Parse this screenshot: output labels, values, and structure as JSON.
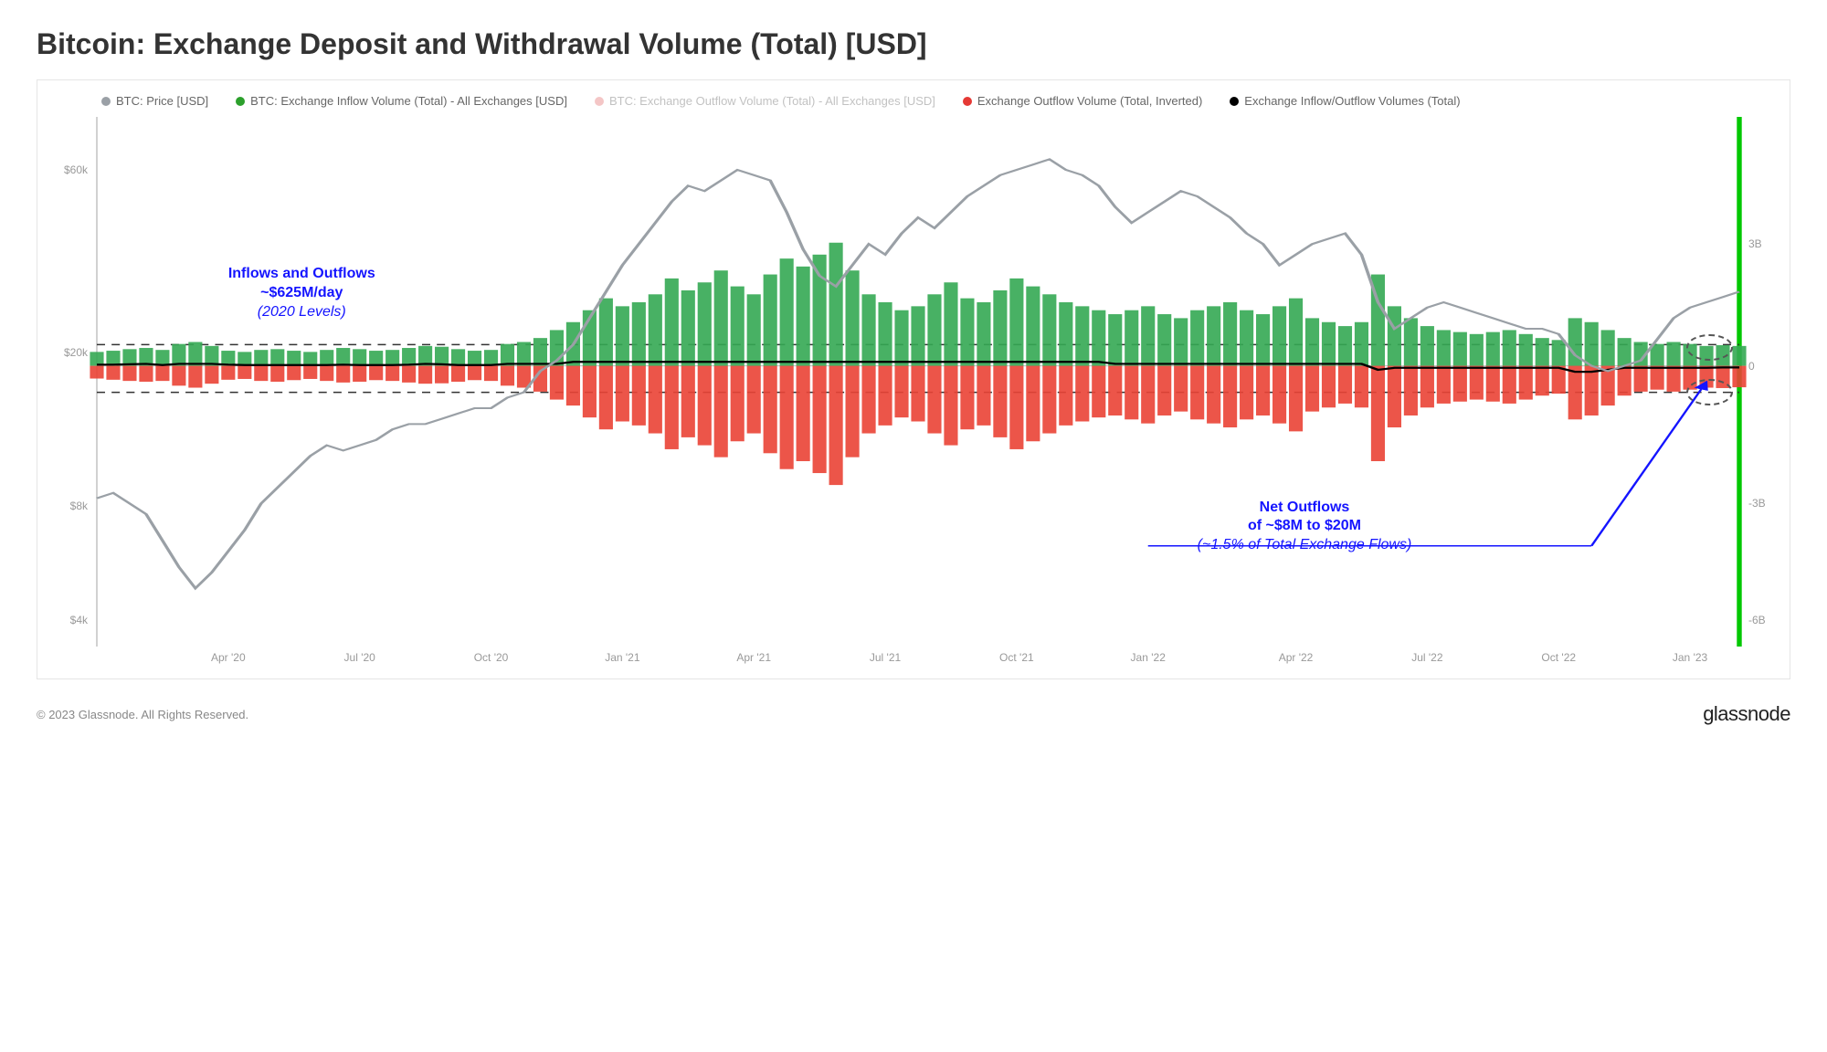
{
  "title": "Bitcoin: Exchange Deposit and Withdrawal Volume (Total) [USD]",
  "copyright": "© 2023 Glassnode. All Rights Reserved.",
  "brand": "glassnode",
  "chart": {
    "type": "mixed-bar-line",
    "background_color": "#ffffff",
    "border_color": "#e5e5e5",
    "legend": [
      {
        "label": "BTC: Price [USD]",
        "color": "#9aa0a6"
      },
      {
        "label": "BTC: Exchange Inflow Volume (Total) - All Exchanges [USD]",
        "color": "#2ca02c"
      },
      {
        "label": "BTC: Exchange Outflow Volume (Total) - All Exchanges [USD]",
        "color": "#e57373",
        "faded": true
      },
      {
        "label": "Exchange Outflow Volume (Total, Inverted)",
        "color": "#e53935"
      },
      {
        "label": "Exchange Inflow/Outflow Volumes (Total)",
        "color": "#000000"
      }
    ],
    "colors": {
      "price_line": "#9aa0a6",
      "inflow_bar": "#34a853",
      "outflow_bar": "#ea4335",
      "net_line": "#000000",
      "annotation": "#1414ff",
      "dashed_ref": "#333333",
      "zero_line": "#bbbbbb",
      "right_edge": "#00c800"
    },
    "left_axis": {
      "scale": "log",
      "ticks": [
        {
          "value": 60000,
          "label": "$60k",
          "pos_pct": 10
        },
        {
          "value": 20000,
          "label": "$20k",
          "pos_pct": 44.5
        },
        {
          "value": 8000,
          "label": "$8k",
          "pos_pct": 73.5
        },
        {
          "value": 4000,
          "label": "$4k",
          "pos_pct": 95
        }
      ]
    },
    "right_axis": {
      "scale": "linear",
      "zero_pos_pct": 47,
      "ticks": [
        {
          "value": 3000000000,
          "label": "3B",
          "pos_pct": 24
        },
        {
          "value": 0,
          "label": "0",
          "pos_pct": 47
        },
        {
          "value": -3000000000,
          "label": "-3B",
          "pos_pct": 73
        },
        {
          "value": -6000000000,
          "label": "-6B",
          "pos_pct": 95
        }
      ]
    },
    "x_axis": {
      "ticks": [
        {
          "label": "Apr '20",
          "pos_pct": 8
        },
        {
          "label": "Jul '20",
          "pos_pct": 16
        },
        {
          "label": "Oct '20",
          "pos_pct": 24
        },
        {
          "label": "Jan '21",
          "pos_pct": 32
        },
        {
          "label": "Apr '21",
          "pos_pct": 40
        },
        {
          "label": "Jul '21",
          "pos_pct": 48
        },
        {
          "label": "Oct '21",
          "pos_pct": 56
        },
        {
          "label": "Jan '22",
          "pos_pct": 64
        },
        {
          "label": "Apr '22",
          "pos_pct": 73
        },
        {
          "label": "Jul '22",
          "pos_pct": 81
        },
        {
          "label": "Oct '22",
          "pos_pct": 89
        },
        {
          "label": "Jan '23",
          "pos_pct": 97
        }
      ]
    },
    "dashed_ref_lines_pct": [
      43,
      52
    ],
    "price_series_pct": [
      [
        0,
        72
      ],
      [
        1,
        71
      ],
      [
        2,
        73
      ],
      [
        3,
        75
      ],
      [
        4,
        80
      ],
      [
        5,
        85
      ],
      [
        6,
        89
      ],
      [
        7,
        86
      ],
      [
        8,
        82
      ],
      [
        9,
        78
      ],
      [
        10,
        73
      ],
      [
        11,
        70
      ],
      [
        12,
        67
      ],
      [
        13,
        64
      ],
      [
        14,
        62
      ],
      [
        15,
        63
      ],
      [
        16,
        62
      ],
      [
        17,
        61
      ],
      [
        18,
        59
      ],
      [
        19,
        58
      ],
      [
        20,
        58
      ],
      [
        21,
        57
      ],
      [
        22,
        56
      ],
      [
        23,
        55
      ],
      [
        24,
        55
      ],
      [
        25,
        53
      ],
      [
        26,
        52
      ],
      [
        27,
        48
      ],
      [
        28,
        46
      ],
      [
        29,
        43
      ],
      [
        30,
        38
      ],
      [
        31,
        33
      ],
      [
        32,
        28
      ],
      [
        33,
        24
      ],
      [
        34,
        20
      ],
      [
        35,
        16
      ],
      [
        36,
        13
      ],
      [
        37,
        14
      ],
      [
        38,
        12
      ],
      [
        39,
        10
      ],
      [
        40,
        11
      ],
      [
        41,
        12
      ],
      [
        42,
        18
      ],
      [
        43,
        25
      ],
      [
        44,
        30
      ],
      [
        45,
        32
      ],
      [
        46,
        28
      ],
      [
        47,
        24
      ],
      [
        48,
        26
      ],
      [
        49,
        22
      ],
      [
        50,
        19
      ],
      [
        51,
        21
      ],
      [
        52,
        18
      ],
      [
        53,
        15
      ],
      [
        54,
        13
      ],
      [
        55,
        11
      ],
      [
        56,
        10
      ],
      [
        57,
        9
      ],
      [
        58,
        8
      ],
      [
        59,
        10
      ],
      [
        60,
        11
      ],
      [
        61,
        13
      ],
      [
        62,
        17
      ],
      [
        63,
        20
      ],
      [
        64,
        18
      ],
      [
        65,
        16
      ],
      [
        66,
        14
      ],
      [
        67,
        15
      ],
      [
        68,
        17
      ],
      [
        69,
        19
      ],
      [
        70,
        22
      ],
      [
        71,
        24
      ],
      [
        72,
        28
      ],
      [
        73,
        26
      ],
      [
        74,
        24
      ],
      [
        75,
        23
      ],
      [
        76,
        22
      ],
      [
        77,
        26
      ],
      [
        78,
        35
      ],
      [
        79,
        40
      ],
      [
        80,
        38
      ],
      [
        81,
        36
      ],
      [
        82,
        35
      ],
      [
        83,
        36
      ],
      [
        84,
        37
      ],
      [
        85,
        38
      ],
      [
        86,
        39
      ],
      [
        87,
        40
      ],
      [
        88,
        40
      ],
      [
        89,
        41
      ],
      [
        90,
        45
      ],
      [
        91,
        47
      ],
      [
        92,
        48
      ],
      [
        93,
        47
      ],
      [
        94,
        46
      ],
      [
        95,
        42
      ],
      [
        96,
        38
      ],
      [
        97,
        36
      ],
      [
        98,
        35
      ],
      [
        99,
        34
      ],
      [
        100,
        33
      ]
    ],
    "inflow_series": [
      0.35,
      0.38,
      0.42,
      0.45,
      0.4,
      0.55,
      0.6,
      0.5,
      0.38,
      0.35,
      0.4,
      0.42,
      0.38,
      0.35,
      0.4,
      0.45,
      0.42,
      0.38,
      0.4,
      0.45,
      0.5,
      0.48,
      0.42,
      0.38,
      0.4,
      0.55,
      0.6,
      0.7,
      0.9,
      1.1,
      1.4,
      1.7,
      1.5,
      1.6,
      1.8,
      2.2,
      1.9,
      2.1,
      2.4,
      2.0,
      1.8,
      2.3,
      2.7,
      2.5,
      2.8,
      3.1,
      2.4,
      1.8,
      1.6,
      1.4,
      1.5,
      1.8,
      2.1,
      1.7,
      1.6,
      1.9,
      2.2,
      2.0,
      1.8,
      1.6,
      1.5,
      1.4,
      1.3,
      1.4,
      1.5,
      1.3,
      1.2,
      1.4,
      1.5,
      1.6,
      1.4,
      1.3,
      1.5,
      1.7,
      1.2,
      1.1,
      1.0,
      1.1,
      2.3,
      1.5,
      1.2,
      1.0,
      0.9,
      0.85,
      0.8,
      0.85,
      0.9,
      0.8,
      0.7,
      0.65,
      1.2,
      1.1,
      0.9,
      0.7,
      0.6,
      0.55,
      0.6,
      0.55,
      0.5,
      0.52,
      0.5
    ],
    "outflow_series": [
      0.32,
      0.35,
      0.38,
      0.4,
      0.38,
      0.5,
      0.55,
      0.45,
      0.35,
      0.33,
      0.38,
      0.4,
      0.36,
      0.33,
      0.38,
      0.42,
      0.4,
      0.36,
      0.38,
      0.42,
      0.45,
      0.44,
      0.4,
      0.36,
      0.38,
      0.5,
      0.55,
      0.65,
      0.85,
      1.0,
      1.3,
      1.6,
      1.4,
      1.5,
      1.7,
      2.1,
      1.8,
      2.0,
      2.3,
      1.9,
      1.7,
      2.2,
      2.6,
      2.4,
      2.7,
      3.0,
      2.3,
      1.7,
      1.5,
      1.3,
      1.4,
      1.7,
      2.0,
      1.6,
      1.5,
      1.8,
      2.1,
      1.9,
      1.7,
      1.5,
      1.4,
      1.3,
      1.25,
      1.35,
      1.45,
      1.25,
      1.15,
      1.35,
      1.45,
      1.55,
      1.35,
      1.25,
      1.45,
      1.65,
      1.15,
      1.05,
      0.95,
      1.05,
      2.4,
      1.55,
      1.25,
      1.05,
      0.95,
      0.9,
      0.85,
      0.9,
      0.95,
      0.85,
      0.75,
      0.7,
      1.35,
      1.25,
      1.0,
      0.75,
      0.65,
      0.6,
      0.65,
      0.6,
      0.55,
      0.56,
      0.54
    ],
    "net_series": [
      0.03,
      0.03,
      0.04,
      0.05,
      0.02,
      0.05,
      0.05,
      0.05,
      0.03,
      0.02,
      0.02,
      0.02,
      0.02,
      0.02,
      0.02,
      0.03,
      0.02,
      0.02,
      0.02,
      0.03,
      0.05,
      0.04,
      0.02,
      0.02,
      0.02,
      0.05,
      0.05,
      0.05,
      0.05,
      0.1,
      0.1,
      0.1,
      0.1,
      0.1,
      0.1,
      0.1,
      0.1,
      0.1,
      0.1,
      0.1,
      0.1,
      0.1,
      0.1,
      0.1,
      0.1,
      0.1,
      0.1,
      0.1,
      0.1,
      0.1,
      0.1,
      0.1,
      0.1,
      0.1,
      0.1,
      0.1,
      0.1,
      0.1,
      0.1,
      0.1,
      0.1,
      0.1,
      0.05,
      0.05,
      0.05,
      0.05,
      0.05,
      0.05,
      0.05,
      0.05,
      0.05,
      0.05,
      0.05,
      0.05,
      0.05,
      0.05,
      0.05,
      0.05,
      -0.1,
      -0.05,
      -0.05,
      -0.05,
      -0.05,
      -0.05,
      -0.05,
      -0.05,
      -0.05,
      -0.05,
      -0.05,
      -0.05,
      -0.15,
      -0.15,
      -0.1,
      -0.05,
      -0.05,
      -0.05,
      -0.05,
      -0.05,
      -0.05,
      -0.04,
      -0.04
    ],
    "volume_to_pct_scale": 7.5,
    "annotations": {
      "a1": {
        "line1": "Inflows and Outflows",
        "line2": "~$625M/day",
        "line3": "(2020 Levels)",
        "top_pct": 28,
        "left_pct": 8,
        "fontsize": 16
      },
      "a2": {
        "line1": "Net Outflows",
        "line2": "of ~$8M to $20M",
        "line3": "(~1.5% of Total Exchange Flows)",
        "top_pct": 72,
        "left_pct": 67,
        "fontsize": 16
      }
    },
    "ellipses": [
      {
        "top_pct": 41,
        "left_pct": 96.8,
        "w_pct": 2.8,
        "h_pct": 5
      },
      {
        "top_pct": 49.5,
        "left_pct": 96.8,
        "w_pct": 2.8,
        "h_pct": 5
      }
    ],
    "arrow": {
      "x1_pct": 91,
      "y1_pct": 81,
      "x2_pct": 98,
      "y2_pct": 50
    }
  }
}
